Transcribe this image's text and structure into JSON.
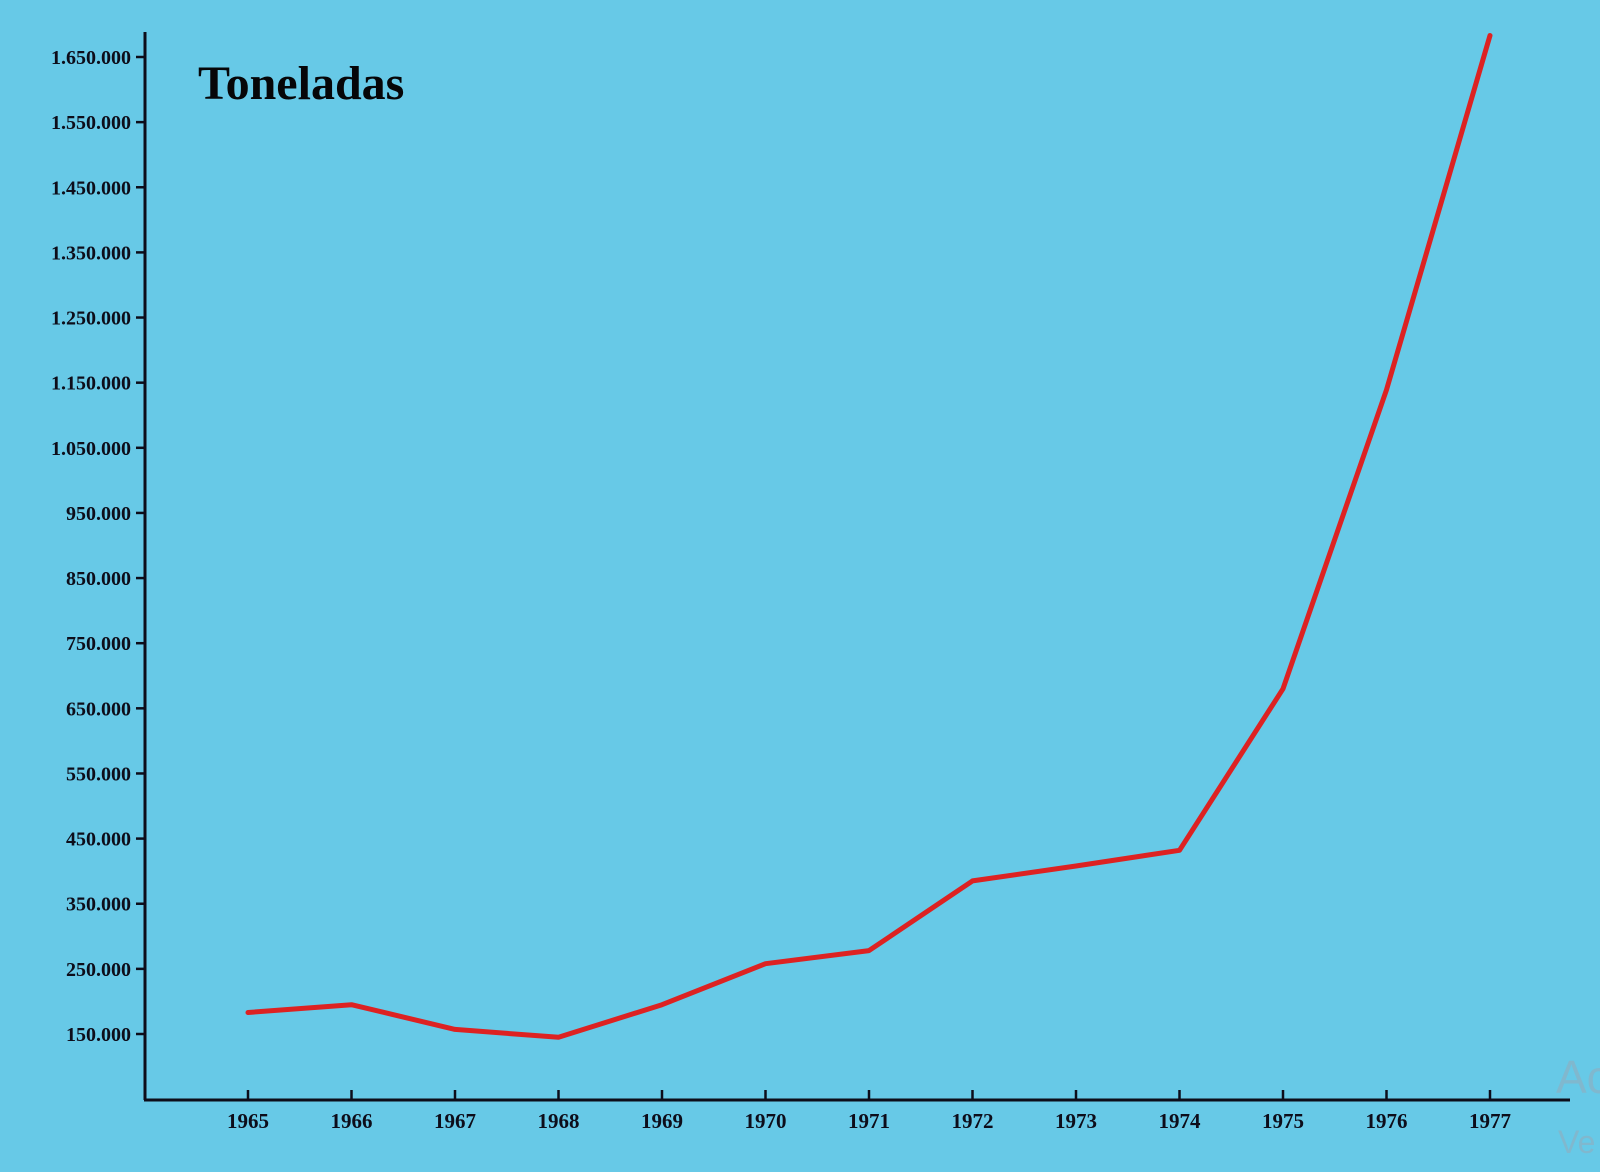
{
  "chart_data": {
    "type": "line",
    "title": "Toneladas",
    "xlabel": "",
    "ylabel": "Toneladas",
    "categories": [
      "1965",
      "1966",
      "1967",
      "1968",
      "1969",
      "1970",
      "1971",
      "1972",
      "1973",
      "1974",
      "1975",
      "1976",
      "1977"
    ],
    "series": [
      {
        "name": "Toneladas",
        "color": "#dd2222",
        "values": [
          183000,
          195000,
          157000,
          145000,
          195000,
          258000,
          278000,
          385000,
          408000,
          432000,
          680000,
          1139000,
          1683000
        ]
      }
    ],
    "yticks": [
      150000,
      250000,
      350000,
      450000,
      550000,
      650000,
      750000,
      850000,
      950000,
      1050000,
      1150000,
      1250000,
      1350000,
      1450000,
      1550000,
      1650000
    ],
    "ytick_labels": [
      "150.000",
      "250.000",
      "350.000",
      "450.000",
      "550.000",
      "650.000",
      "750.000",
      "850.000",
      "950.000",
      "1.050.000",
      "1.150.000",
      "1.250.000",
      "1.350.000",
      "1.450.000",
      "1.550.000",
      "1.650.000"
    ],
    "ylim": [
      50000,
      1690000
    ],
    "grid": false,
    "legend": "none",
    "background_color": "#67c9e7",
    "axis_color": "#0d0d1a"
  },
  "watermark": {
    "line1": "Ac",
    "line2": "Ve"
  }
}
